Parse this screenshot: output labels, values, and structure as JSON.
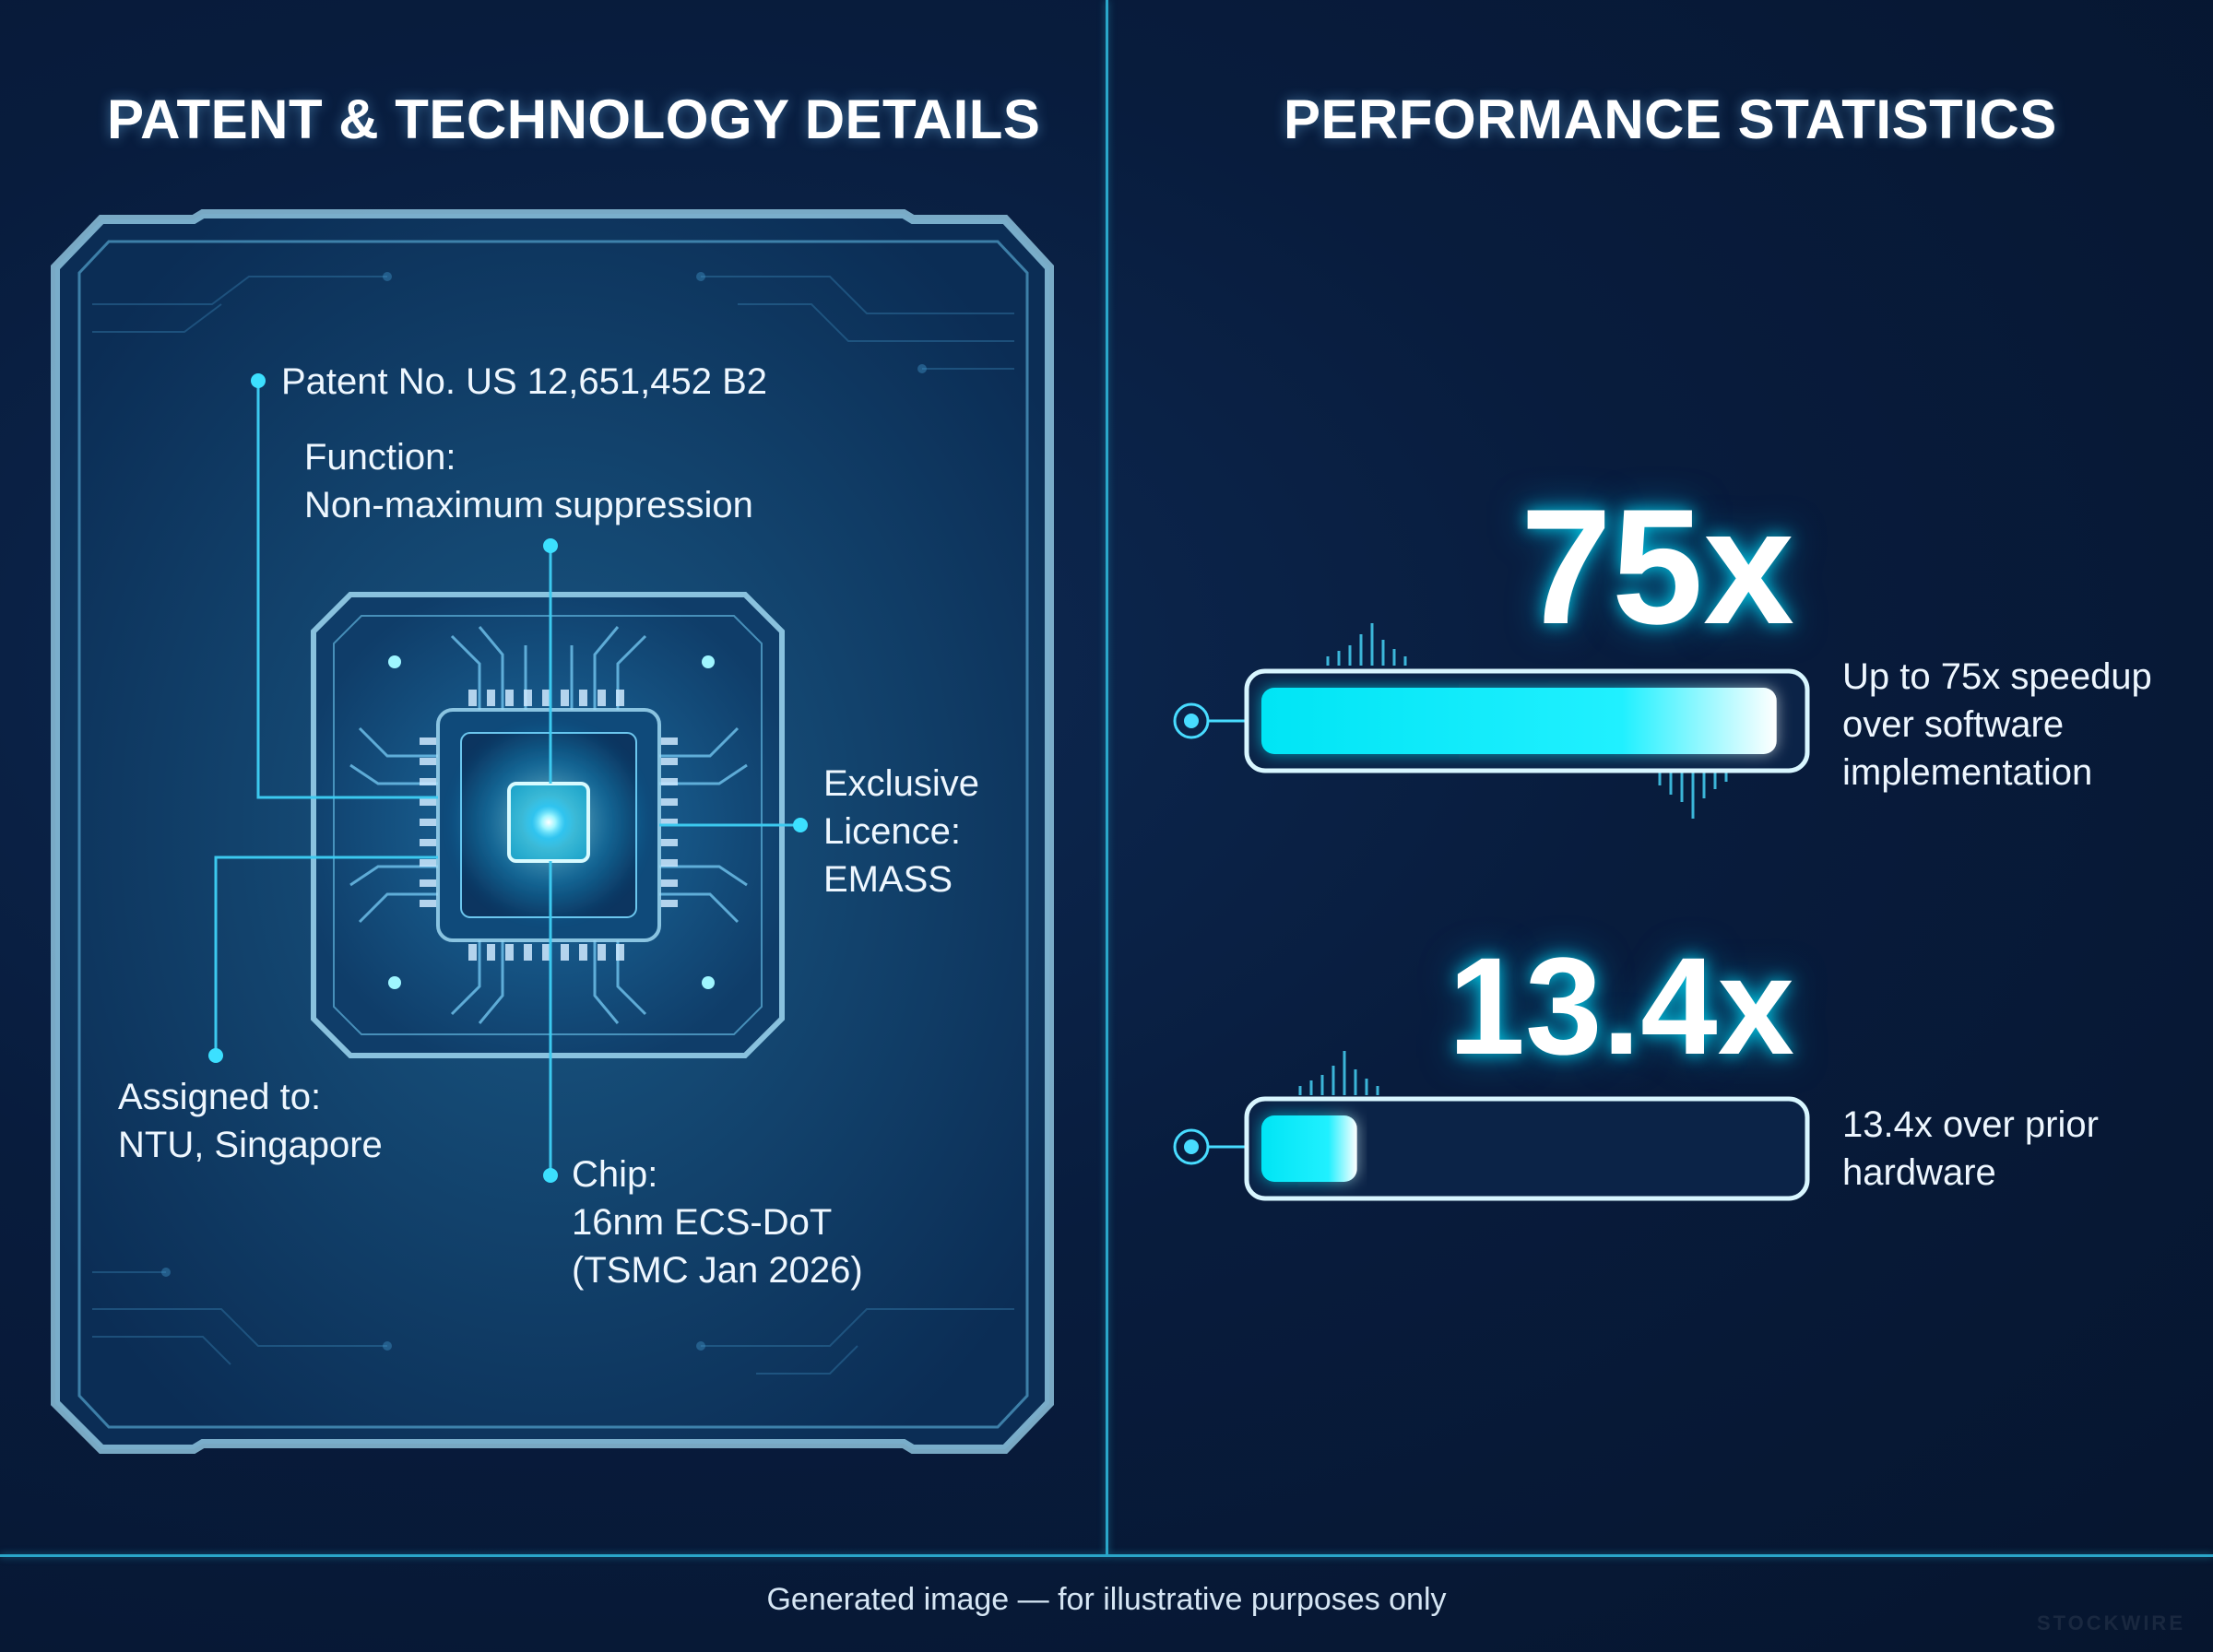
{
  "left_panel": {
    "title": "PATENT & TECHNOLOGY DETAILS",
    "patent": "Patent No. US 12,651,452 B2",
    "function_label": "Function:",
    "function_value": "Non-maximum suppression",
    "licence_line1": "Exclusive",
    "licence_line2": "Licence:",
    "licence_line3": "EMASS",
    "assigned_label": "Assigned to:",
    "assigned_value": "NTU, Singapore",
    "chip_label": "Chip:",
    "chip_line1": "16nm ECS-DoT",
    "chip_line2": "(TSMC Jan 2026)"
  },
  "right_panel": {
    "title": "PERFORMANCE STATISTICS",
    "stats": [
      {
        "value_label": "75x",
        "fill_fraction": 0.97,
        "line1": "Up to 75x speedup",
        "line2": "over software",
        "line3": "implementation"
      },
      {
        "value_label": "13.4x",
        "fill_fraction": 0.18,
        "line1": "13.4x over prior",
        "line2": "hardware"
      }
    ]
  },
  "footer": {
    "text": "Generated image — for illustrative purposes only",
    "watermark": "STOCKWIRE"
  },
  "colors": {
    "accent": "#00e5ff",
    "line": "#2aa6c9",
    "background": "#071a3a"
  },
  "icons": [
    "chip-icon",
    "connector-dot-icon"
  ]
}
